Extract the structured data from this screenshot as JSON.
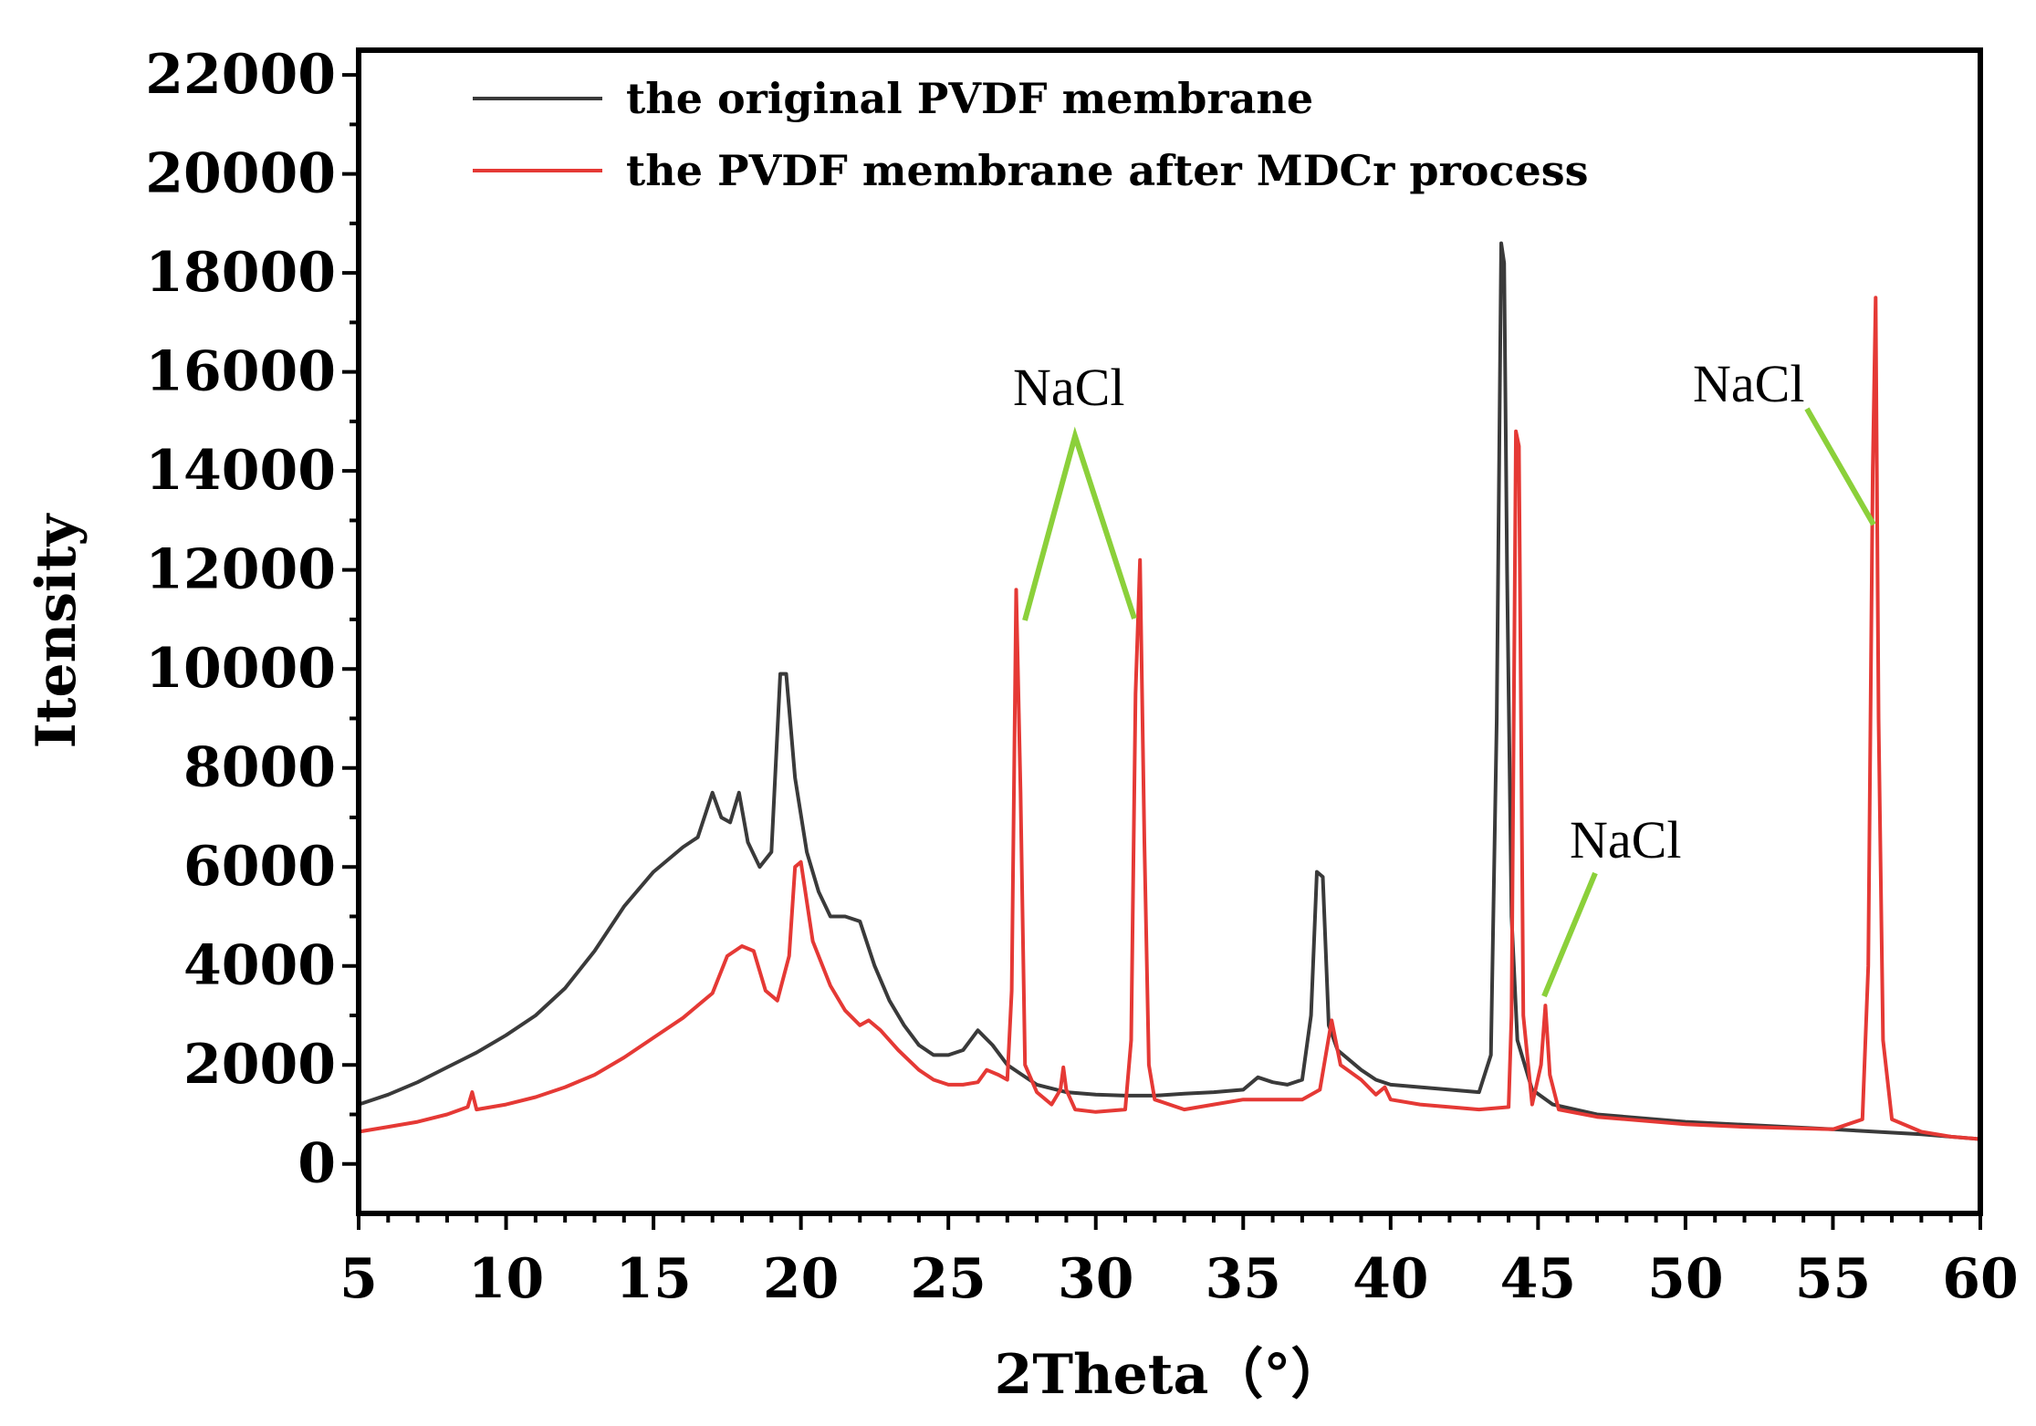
{
  "chart_data": {
    "type": "line",
    "title": "",
    "xlabel": "2Theta（°）",
    "ylabel": "Itensity",
    "xlim": [
      5,
      60
    ],
    "ylim": [
      -1000,
      22500
    ],
    "xticks": [
      5,
      10,
      15,
      20,
      25,
      30,
      35,
      40,
      45,
      50,
      55,
      60
    ],
    "yticks": [
      0,
      2000,
      4000,
      6000,
      8000,
      10000,
      12000,
      14000,
      16000,
      18000,
      20000,
      22000
    ],
    "grid": false,
    "legend": "top-left",
    "series": [
      {
        "name": "the original PVDF membrane",
        "color": "#3a3a3a",
        "points": [
          [
            5,
            1200
          ],
          [
            6,
            1400
          ],
          [
            7,
            1650
          ],
          [
            8,
            1950
          ],
          [
            9,
            2250
          ],
          [
            10,
            2600
          ],
          [
            11,
            3000
          ],
          [
            12,
            3550
          ],
          [
            13,
            4300
          ],
          [
            14,
            5200
          ],
          [
            15,
            5900
          ],
          [
            16,
            6400
          ],
          [
            16.5,
            6600
          ],
          [
            17,
            7500
          ],
          [
            17.3,
            7000
          ],
          [
            17.6,
            6900
          ],
          [
            17.9,
            7500
          ],
          [
            18.2,
            6500
          ],
          [
            18.6,
            6000
          ],
          [
            19,
            6300
          ],
          [
            19.3,
            9900
          ],
          [
            19.5,
            9900
          ],
          [
            19.8,
            7800
          ],
          [
            20.2,
            6300
          ],
          [
            20.6,
            5500
          ],
          [
            21,
            5000
          ],
          [
            21.5,
            5000
          ],
          [
            22,
            4900
          ],
          [
            22.5,
            4000
          ],
          [
            23,
            3300
          ],
          [
            23.5,
            2800
          ],
          [
            24,
            2400
          ],
          [
            24.5,
            2200
          ],
          [
            25,
            2200
          ],
          [
            25.5,
            2300
          ],
          [
            26,
            2700
          ],
          [
            26.5,
            2400
          ],
          [
            27,
            2000
          ],
          [
            27.5,
            1800
          ],
          [
            28,
            1600
          ],
          [
            29,
            1450
          ],
          [
            30,
            1400
          ],
          [
            31,
            1380
          ],
          [
            32,
            1380
          ],
          [
            33,
            1420
          ],
          [
            34,
            1450
          ],
          [
            35,
            1500
          ],
          [
            35.5,
            1750
          ],
          [
            36,
            1650
          ],
          [
            36.5,
            1600
          ],
          [
            37,
            1700
          ],
          [
            37.3,
            3000
          ],
          [
            37.5,
            5900
          ],
          [
            37.7,
            5800
          ],
          [
            37.9,
            2800
          ],
          [
            38.2,
            2300
          ],
          [
            38.6,
            2100
          ],
          [
            39,
            1900
          ],
          [
            39.5,
            1700
          ],
          [
            40,
            1600
          ],
          [
            41,
            1550
          ],
          [
            42,
            1500
          ],
          [
            43,
            1450
          ],
          [
            43.4,
            2200
          ],
          [
            43.6,
            9000
          ],
          [
            43.75,
            18600
          ],
          [
            43.85,
            18200
          ],
          [
            43.95,
            12000
          ],
          [
            44.1,
            5000
          ],
          [
            44.3,
            2500
          ],
          [
            44.8,
            1500
          ],
          [
            45.5,
            1200
          ],
          [
            47,
            1000
          ],
          [
            50,
            850
          ],
          [
            55,
            700
          ],
          [
            58,
            600
          ],
          [
            60,
            500
          ]
        ]
      },
      {
        "name": "the PVDF membrane after MDCr process",
        "color": "#e53935",
        "points": [
          [
            5,
            650
          ],
          [
            6,
            750
          ],
          [
            7,
            850
          ],
          [
            8,
            1000
          ],
          [
            8.7,
            1150
          ],
          [
            8.85,
            1450
          ],
          [
            9,
            1100
          ],
          [
            10,
            1200
          ],
          [
            11,
            1350
          ],
          [
            12,
            1550
          ],
          [
            13,
            1800
          ],
          [
            14,
            2150
          ],
          [
            15,
            2550
          ],
          [
            16,
            2950
          ],
          [
            17,
            3450
          ],
          [
            17.5,
            4200
          ],
          [
            18,
            4400
          ],
          [
            18.4,
            4300
          ],
          [
            18.8,
            3500
          ],
          [
            19.2,
            3300
          ],
          [
            19.6,
            4200
          ],
          [
            19.8,
            6000
          ],
          [
            20,
            6100
          ],
          [
            20.4,
            4500
          ],
          [
            21,
            3600
          ],
          [
            21.5,
            3100
          ],
          [
            22,
            2800
          ],
          [
            22.3,
            2900
          ],
          [
            22.7,
            2700
          ],
          [
            23.3,
            2300
          ],
          [
            24,
            1900
          ],
          [
            24.5,
            1700
          ],
          [
            25,
            1600
          ],
          [
            25.5,
            1600
          ],
          [
            26,
            1650
          ],
          [
            26.3,
            1900
          ],
          [
            26.7,
            1800
          ],
          [
            27,
            1700
          ],
          [
            27.15,
            3500
          ],
          [
            27.3,
            11600
          ],
          [
            27.45,
            7500
          ],
          [
            27.6,
            2000
          ],
          [
            28,
            1450
          ],
          [
            28.5,
            1200
          ],
          [
            28.8,
            1500
          ],
          [
            28.9,
            1950
          ],
          [
            29,
            1500
          ],
          [
            29.3,
            1100
          ],
          [
            30,
            1050
          ],
          [
            31,
            1100
          ],
          [
            31.2,
            2500
          ],
          [
            31.35,
            9500
          ],
          [
            31.5,
            12200
          ],
          [
            31.65,
            6500
          ],
          [
            31.8,
            2000
          ],
          [
            32,
            1300
          ],
          [
            33,
            1100
          ],
          [
            33.5,
            1150
          ],
          [
            34,
            1200
          ],
          [
            35,
            1300
          ],
          [
            36,
            1300
          ],
          [
            37,
            1300
          ],
          [
            37.6,
            1500
          ],
          [
            38,
            2900
          ],
          [
            38.3,
            2000
          ],
          [
            39,
            1700
          ],
          [
            39.5,
            1400
          ],
          [
            39.8,
            1550
          ],
          [
            40,
            1300
          ],
          [
            41,
            1200
          ],
          [
            42,
            1150
          ],
          [
            43,
            1100
          ],
          [
            44,
            1150
          ],
          [
            44.1,
            3000
          ],
          [
            44.25,
            14800
          ],
          [
            44.35,
            14500
          ],
          [
            44.5,
            3000
          ],
          [
            44.8,
            1200
          ],
          [
            45.1,
            2000
          ],
          [
            45.25,
            3200
          ],
          [
            45.4,
            1800
          ],
          [
            45.7,
            1100
          ],
          [
            47,
            950
          ],
          [
            50,
            800
          ],
          [
            52,
            750
          ],
          [
            55,
            700
          ],
          [
            56,
            900
          ],
          [
            56.2,
            4000
          ],
          [
            56.35,
            14000
          ],
          [
            56.45,
            17500
          ],
          [
            56.55,
            9000
          ],
          [
            56.7,
            2500
          ],
          [
            57,
            900
          ],
          [
            58,
            650
          ],
          [
            59,
            550
          ],
          [
            60,
            500
          ]
        ]
      }
    ],
    "annotations": [
      {
        "text": "NaCl",
        "targets": [
          27.5,
          31.4
        ]
      },
      {
        "text": "NaCl",
        "targets": [
          45.3
        ]
      },
      {
        "text": "NaCl",
        "targets": [
          56.4
        ]
      }
    ]
  }
}
